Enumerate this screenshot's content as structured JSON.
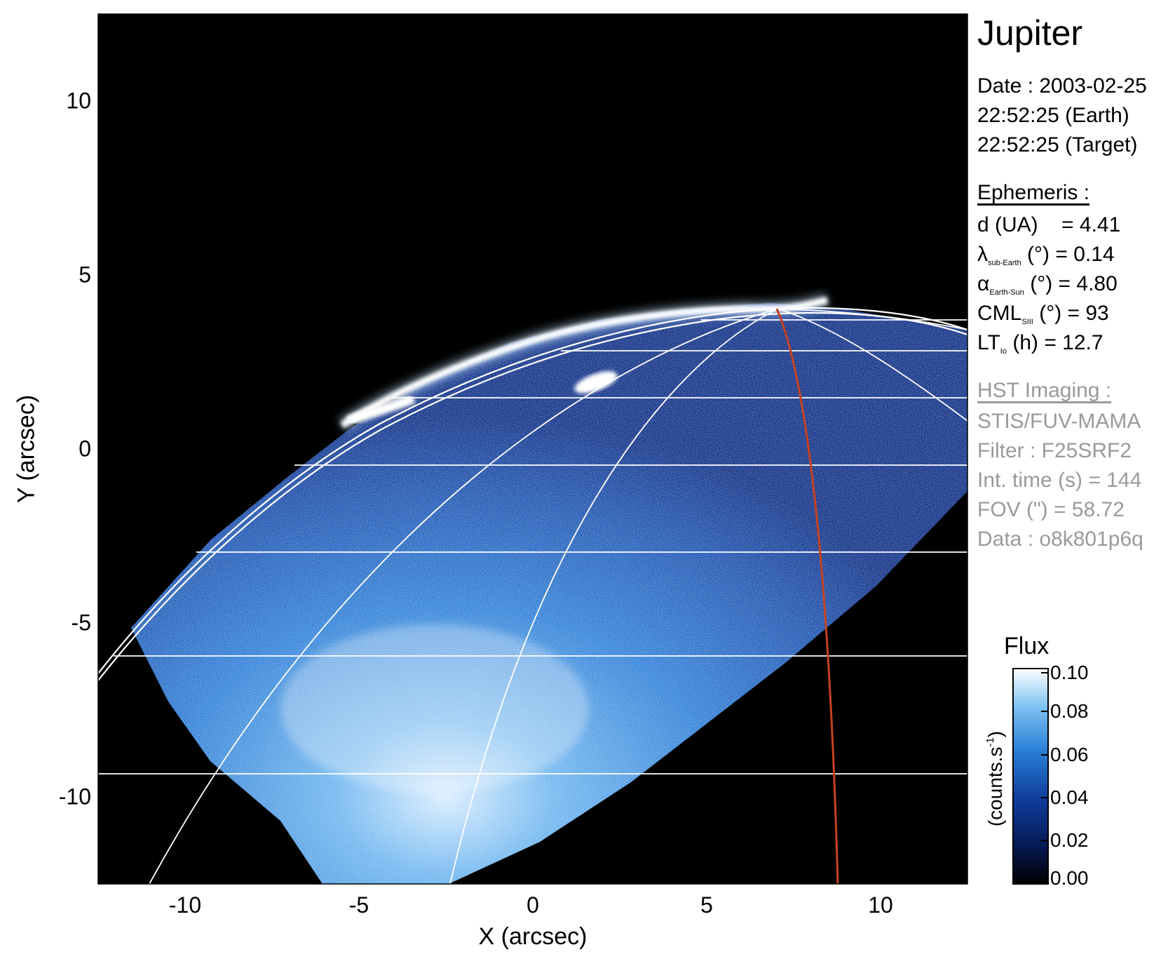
{
  "figure": {
    "title": "Jupiter",
    "observation": {
      "date_line": "Date : 2003-02-25",
      "earth_time": "22:52:25 (Earth)",
      "target_time": "22:52:25 (Target)"
    },
    "ephemeris": {
      "heading": "Ephemeris :",
      "distance": {
        "label": "d (UA)",
        "value": "= 4.41"
      },
      "sub_earth_lat": {
        "symbol": "λ",
        "sub": "sub-Earth",
        "unit": "(°) = 0.14"
      },
      "phase_angle": {
        "symbol": "α",
        "sub": "Earth-Sun",
        "unit": "(°) = 4.80"
      },
      "cml": {
        "symbol": "CML",
        "sub": "SIII",
        "unit": "(°) = 93"
      },
      "lt_io": {
        "symbol": "LT",
        "sub": "Io",
        "unit": "(h) = 12.7"
      }
    },
    "hst": {
      "heading": "HST Imaging :",
      "instrument": "STIS/FUV-MAMA",
      "filter": "Filter : F25SRF2",
      "int_time": "Int. time (s) = 144",
      "fov": "FOV (\") = 58.72",
      "data_id": "Data : o8k801p6q"
    },
    "axes": {
      "xlabel": "X (arcsec)",
      "ylabel": "Y (arcsec)",
      "xticks": [
        "-10",
        "-5",
        "0",
        "5",
        "10"
      ],
      "yticks": [
        "10",
        "5",
        "0",
        "-5",
        "-10"
      ],
      "xrange": [
        -12.5,
        12.5
      ],
      "yrange": [
        -12.5,
        12.5
      ]
    },
    "colorbar": {
      "title": "Flux",
      "label": "(counts.s",
      "label_sup": "-1",
      "label_end": ")",
      "ticks": [
        "0.10",
        "0.08",
        "0.06",
        "0.04",
        "0.02",
        "0.00"
      ],
      "range": [
        0.0,
        0.1
      ]
    },
    "colors": {
      "background": "#000000",
      "emission_low": "#0a1f6b",
      "emission_mid": "#2e7cd6",
      "emission_high": "#ffffff",
      "grid": "#ffffff",
      "central_meridian": "#c8411e",
      "grey_text": "#9a9a9a"
    }
  }
}
